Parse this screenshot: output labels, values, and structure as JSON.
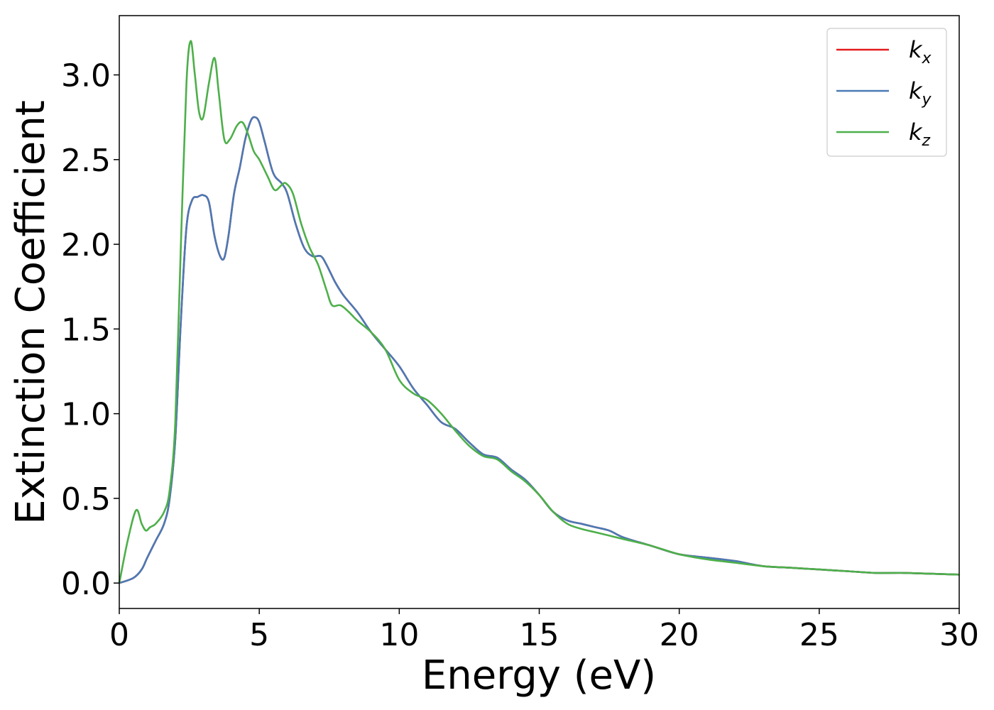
{
  "chart_data": {
    "type": "line",
    "xlabel": "Energy (eV)",
    "ylabel": "Extinction Coefficient",
    "xlim": [
      0,
      30
    ],
    "ylim": [
      -0.15,
      3.35
    ],
    "xticks": [
      0,
      5,
      10,
      15,
      20,
      25,
      30
    ],
    "xtick_labels": [
      "0",
      "5",
      "10",
      "15",
      "20",
      "25",
      "30"
    ],
    "yticks": [
      0.0,
      0.5,
      1.0,
      1.5,
      2.0,
      2.5,
      3.0
    ],
    "ytick_labels": [
      "0.0",
      "0.5",
      "1.0",
      "1.5",
      "2.0",
      "2.5",
      "3.0"
    ],
    "grid": false,
    "legend_position": "top-right",
    "series": [
      {
        "name": "k_x",
        "label_main": "k",
        "label_sub": "x",
        "color": "#e41a1c",
        "x": [
          0,
          0.5,
          0.8,
          1.0,
          1.3,
          1.6,
          1.8,
          2.0,
          2.2,
          2.4,
          2.6,
          2.8,
          3.0,
          3.2,
          3.4,
          3.6,
          3.75,
          3.9,
          4.1,
          4.3,
          4.5,
          4.7,
          4.85,
          5.0,
          5.2,
          5.5,
          5.8,
          6.0,
          6.3,
          6.6,
          6.9,
          7.2,
          7.4,
          7.7,
          8.0,
          8.5,
          9.0,
          9.5,
          10.0,
          10.5,
          11.0,
          11.5,
          12.0,
          12.5,
          13.0,
          13.5,
          14.0,
          14.5,
          15.0,
          15.5,
          16.0,
          16.5,
          17.0,
          17.5,
          18.0,
          19.0,
          20.0,
          21.0,
          22.0,
          23.0,
          24.0,
          25.0,
          26.0,
          27.0,
          28.0,
          29.0,
          30.0
        ],
        "values": [
          0.0,
          0.03,
          0.08,
          0.15,
          0.25,
          0.35,
          0.5,
          0.85,
          1.55,
          2.1,
          2.26,
          2.28,
          2.29,
          2.25,
          2.05,
          1.93,
          1.92,
          2.05,
          2.3,
          2.45,
          2.62,
          2.73,
          2.75,
          2.72,
          2.6,
          2.42,
          2.36,
          2.3,
          2.12,
          1.98,
          1.93,
          1.93,
          1.88,
          1.78,
          1.7,
          1.6,
          1.48,
          1.38,
          1.28,
          1.15,
          1.05,
          0.95,
          0.91,
          0.83,
          0.76,
          0.74,
          0.67,
          0.61,
          0.52,
          0.42,
          0.37,
          0.35,
          0.33,
          0.31,
          0.27,
          0.22,
          0.17,
          0.15,
          0.13,
          0.1,
          0.09,
          0.08,
          0.07,
          0.06,
          0.06,
          0.055,
          0.05
        ]
      },
      {
        "name": "k_y",
        "label_main": "k",
        "label_sub": "y",
        "color": "#4a7ab5",
        "x": [
          0,
          0.5,
          0.8,
          1.0,
          1.3,
          1.6,
          1.8,
          2.0,
          2.2,
          2.4,
          2.6,
          2.8,
          3.0,
          3.2,
          3.4,
          3.6,
          3.75,
          3.9,
          4.1,
          4.3,
          4.5,
          4.7,
          4.85,
          5.0,
          5.2,
          5.5,
          5.8,
          6.0,
          6.3,
          6.6,
          6.9,
          7.2,
          7.4,
          7.7,
          8.0,
          8.5,
          9.0,
          9.5,
          10.0,
          10.5,
          11.0,
          11.5,
          12.0,
          12.5,
          13.0,
          13.5,
          14.0,
          14.5,
          15.0,
          15.5,
          16.0,
          16.5,
          17.0,
          17.5,
          18.0,
          19.0,
          20.0,
          21.0,
          22.0,
          23.0,
          24.0,
          25.0,
          26.0,
          27.0,
          28.0,
          29.0,
          30.0
        ],
        "values": [
          0.0,
          0.03,
          0.08,
          0.15,
          0.25,
          0.35,
          0.5,
          0.85,
          1.55,
          2.1,
          2.26,
          2.28,
          2.29,
          2.25,
          2.05,
          1.93,
          1.92,
          2.05,
          2.3,
          2.45,
          2.62,
          2.73,
          2.75,
          2.72,
          2.6,
          2.42,
          2.36,
          2.3,
          2.12,
          1.98,
          1.93,
          1.93,
          1.88,
          1.78,
          1.7,
          1.6,
          1.48,
          1.38,
          1.28,
          1.15,
          1.05,
          0.95,
          0.91,
          0.83,
          0.76,
          0.74,
          0.67,
          0.61,
          0.52,
          0.42,
          0.37,
          0.35,
          0.33,
          0.31,
          0.27,
          0.22,
          0.17,
          0.15,
          0.13,
          0.1,
          0.09,
          0.08,
          0.07,
          0.06,
          0.06,
          0.055,
          0.05
        ]
      },
      {
        "name": "k_z",
        "label_main": "k",
        "label_sub": "z",
        "color": "#4daf4a",
        "x": [
          0,
          0.3,
          0.6,
          0.8,
          0.95,
          1.1,
          1.3,
          1.6,
          1.8,
          2.0,
          2.2,
          2.4,
          2.55,
          2.7,
          2.85,
          3.0,
          3.2,
          3.4,
          3.55,
          3.75,
          3.95,
          4.2,
          4.4,
          4.6,
          4.8,
          5.0,
          5.3,
          5.55,
          5.8,
          5.95,
          6.2,
          6.5,
          6.8,
          7.1,
          7.4,
          7.6,
          7.9,
          8.2,
          8.5,
          9.0,
          9.5,
          10.0,
          10.5,
          11.0,
          11.5,
          12.0,
          12.5,
          13.0,
          13.5,
          14.0,
          14.5,
          15.0,
          15.5,
          16.0,
          16.5,
          17.0,
          17.5,
          18.0,
          19.0,
          20.0,
          21.0,
          22.0,
          23.0,
          24.0,
          25.0,
          26.0,
          27.0,
          28.0,
          29.0,
          30.0
        ],
        "values": [
          0.0,
          0.25,
          0.43,
          0.35,
          0.31,
          0.33,
          0.35,
          0.42,
          0.55,
          0.95,
          2.0,
          2.95,
          3.2,
          3.0,
          2.78,
          2.75,
          2.95,
          3.1,
          2.9,
          2.62,
          2.62,
          2.7,
          2.72,
          2.65,
          2.55,
          2.5,
          2.4,
          2.32,
          2.35,
          2.36,
          2.3,
          2.12,
          1.98,
          1.88,
          1.73,
          1.64,
          1.64,
          1.6,
          1.55,
          1.48,
          1.38,
          1.2,
          1.12,
          1.08,
          1.0,
          0.9,
          0.81,
          0.75,
          0.73,
          0.66,
          0.6,
          0.52,
          0.42,
          0.35,
          0.32,
          0.3,
          0.28,
          0.26,
          0.22,
          0.17,
          0.14,
          0.12,
          0.1,
          0.09,
          0.08,
          0.07,
          0.06,
          0.06,
          0.055,
          0.05
        ]
      }
    ]
  }
}
